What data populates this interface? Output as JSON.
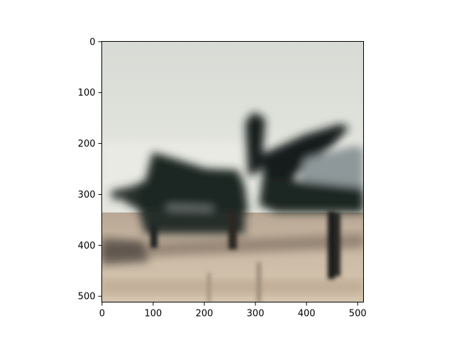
{
  "image": {
    "subject": "blurry photograph of a dark aircraft (jet) parked on a tarmac with an overcast sky",
    "x_axis": {
      "ticks": [
        0,
        100,
        200,
        300,
        400,
        500
      ],
      "range": [
        0,
        511
      ]
    },
    "y_axis": {
      "ticks": [
        0,
        100,
        200,
        300,
        400,
        500
      ],
      "range": [
        0,
        511
      ],
      "inverted": true
    },
    "colors": {
      "sky": "#dcdfd9",
      "sky_low": "#e6e8e1",
      "aircraft": "#1b2422",
      "aircraft_light": "#9aa3a4",
      "ground": "#c9b9a3",
      "ground_dark": "#8f7c68",
      "frame": "#000000"
    }
  }
}
